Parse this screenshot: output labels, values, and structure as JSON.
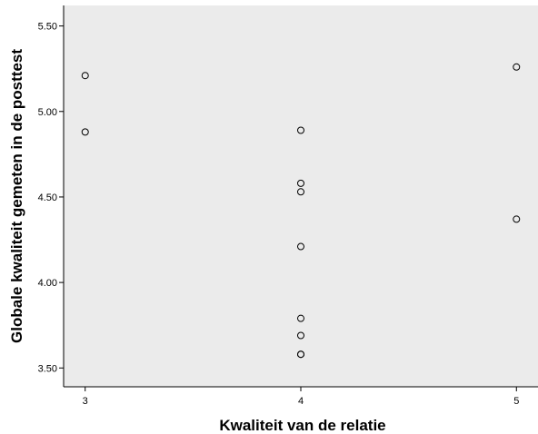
{
  "chart_data": {
    "type": "scatter",
    "title": "",
    "xlabel": "Kwaliteit van de relatie",
    "ylabel": "Globale kwaliteit gemeten in de posttest",
    "x_ticks": [
      3,
      4,
      5
    ],
    "x_tick_labels": [
      "3",
      "4",
      "5"
    ],
    "y_ticks": [
      3.5,
      4.0,
      4.5,
      5.0,
      5.5
    ],
    "y_tick_labels": [
      "3.50",
      "4.00",
      "4.50",
      "5.00",
      "5.50"
    ],
    "xlim": [
      2.9,
      5.1
    ],
    "ylim": [
      3.39,
      5.62
    ],
    "grid": false,
    "plot_background": "#ebebeb",
    "marker": "open-circle",
    "series": [
      {
        "x": [
          3,
          3,
          4,
          4,
          4,
          4,
          4,
          4,
          4,
          4,
          5,
          5
        ],
        "y": [
          5.21,
          4.88,
          4.89,
          4.58,
          4.53,
          4.21,
          3.79,
          3.69,
          3.58,
          3.58,
          5.26,
          4.37
        ]
      }
    ]
  }
}
